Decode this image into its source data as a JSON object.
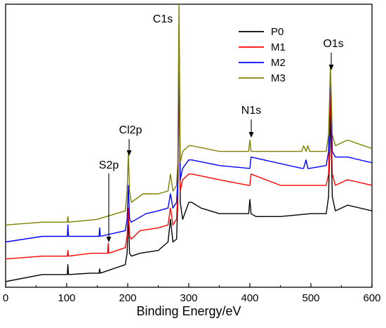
{
  "chart_data": {
    "type": "line",
    "title": "",
    "xlabel": "Binding Energy/eV",
    "ylabel": "",
    "xlim": [
      0,
      600
    ],
    "ylim": [
      0,
      100
    ],
    "x_ticks": [
      0,
      100,
      200,
      300,
      400,
      500,
      600
    ],
    "y_ticks_shown": false,
    "grid": false,
    "legend_position": "top-right",
    "annotations": [
      {
        "text": "C1s",
        "x": 284
      },
      {
        "text": "O1s",
        "x": 532
      },
      {
        "text": "N1s",
        "x": 400
      },
      {
        "text": "Cl2p",
        "x": 200
      },
      {
        "text": "S2p",
        "x": 168
      }
    ],
    "series": [
      {
        "name": "P0",
        "color": "#000000",
        "x": [
          0,
          60,
          101,
          102,
          103,
          140,
          153,
          154,
          155,
          196,
          199,
          201,
          203,
          206,
          220,
          250,
          266,
          270,
          274,
          280,
          282,
          284,
          286,
          290,
          300,
          305,
          320,
          350,
          398,
          400,
          402,
          410,
          450,
          500,
          525,
          529,
          532,
          535,
          540,
          560,
          600
        ],
        "y": [
          2,
          4.5,
          4.5,
          8,
          4.5,
          5,
          5,
          6.5,
          5,
          8,
          12,
          26,
          12,
          11,
          12,
          13,
          16,
          24,
          16,
          17,
          30,
          84,
          30,
          24,
          30,
          30,
          28,
          26,
          26,
          31,
          26,
          25,
          25,
          26,
          26,
          32,
          62,
          32,
          27,
          29,
          27
        ]
      },
      {
        "name": "M1",
        "color": "#ff0000",
        "x": [
          0,
          60,
          101,
          102,
          103,
          140,
          167,
          168,
          169,
          196,
          199,
          201,
          203,
          206,
          220,
          250,
          266,
          270,
          274,
          280,
          282,
          284,
          286,
          290,
          300,
          305,
          350,
          398,
          400,
          402,
          450,
          500,
          525,
          529,
          532,
          535,
          540,
          560,
          600
        ],
        "y": [
          10,
          11,
          11,
          13,
          11,
          12,
          12,
          15.5,
          12,
          14,
          18,
          28,
          18,
          17,
          20,
          21,
          22,
          28,
          22,
          24,
          34,
          88,
          34,
          38,
          40,
          40,
          38,
          36,
          36,
          40,
          36,
          36,
          36,
          40,
          70,
          40,
          36,
          38,
          36
        ]
      },
      {
        "name": "M2",
        "color": "#0000ff",
        "x": [
          0,
          60,
          101,
          102,
          103,
          150,
          153,
          154,
          155,
          196,
          199,
          201,
          203,
          206,
          230,
          250,
          266,
          270,
          274,
          280,
          282,
          284,
          286,
          290,
          300,
          305,
          350,
          398,
          400,
          402,
          485,
          488,
          492,
          495,
          498,
          525,
          529,
          532,
          535,
          540,
          560,
          600
        ],
        "y": [
          16,
          18,
          18,
          22,
          18,
          18,
          18,
          21,
          18,
          20,
          24,
          36,
          24,
          23,
          26,
          27,
          28,
          33,
          28,
          30,
          38,
          92,
          38,
          42,
          45,
          45,
          43,
          42,
          42,
          46,
          42,
          42,
          45,
          42,
          42,
          43,
          48,
          77,
          48,
          46,
          46,
          44
        ]
      },
      {
        "name": "M3",
        "color": "#808000",
        "x": [
          0,
          60,
          101,
          102,
          103,
          150,
          196,
          199,
          201,
          203,
          206,
          225,
          250,
          266,
          270,
          274,
          280,
          282,
          284,
          286,
          290,
          300,
          305,
          350,
          398,
          400,
          402,
          485,
          488,
          492,
          495,
          498,
          525,
          529,
          532,
          535,
          540,
          560,
          600
        ],
        "y": [
          22,
          23,
          23,
          25,
          23,
          24,
          27,
          34,
          47,
          34,
          30,
          33,
          33,
          34,
          40,
          34,
          36,
          44,
          100,
          44,
          48,
          50,
          50,
          48,
          48,
          52,
          48,
          48,
          50,
          48,
          50,
          48,
          48,
          54,
          78,
          54,
          50,
          52,
          49
        ]
      }
    ]
  }
}
